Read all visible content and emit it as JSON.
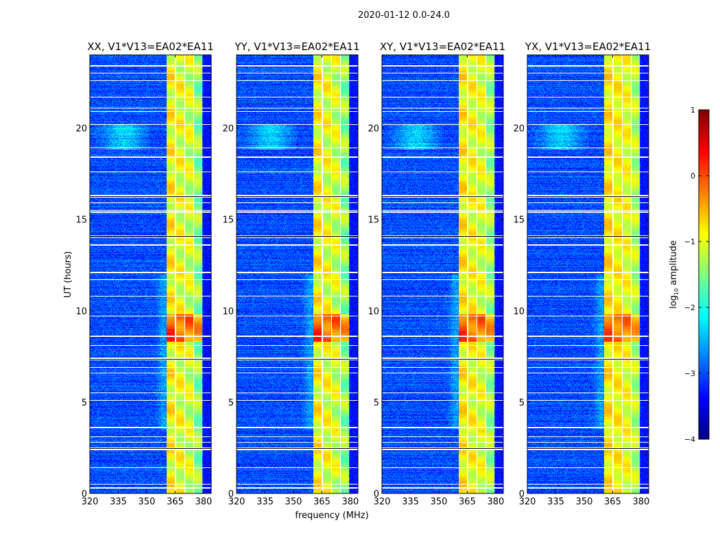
{
  "figure": {
    "title": "2020-01-12 0.0-24.0"
  },
  "chart_data": [
    {
      "type": "heatmap",
      "title": "XX, V1*V13=EA02*EA11",
      "xlabel": "",
      "ylabel": "UT (hours)",
      "xlim": [
        320,
        384
      ],
      "ylim": [
        0,
        24
      ],
      "xticks": [
        320,
        335,
        350,
        365,
        380
      ],
      "yticks": [
        0,
        5,
        10,
        15,
        20
      ],
      "band_strength": 1.0
    },
    {
      "type": "heatmap",
      "title": "YY, V1*V13=EA02*EA11",
      "xlabel": "frequency (MHz)",
      "ylabel": "",
      "xlim": [
        320,
        384
      ],
      "ylim": [
        0,
        24
      ],
      "xticks": [
        320,
        335,
        350,
        365,
        380
      ],
      "yticks": [
        0,
        5,
        10,
        15,
        20
      ],
      "band_strength": 1.0
    },
    {
      "type": "heatmap",
      "title": "XY, V1*V13=EA02*EA11",
      "xlabel": "",
      "ylabel": "",
      "xlim": [
        320,
        384
      ],
      "ylim": [
        0,
        24
      ],
      "xticks": [
        320,
        335,
        350,
        365,
        380
      ],
      "yticks": [
        0,
        5,
        10,
        15,
        20
      ],
      "band_strength": 0.9
    },
    {
      "type": "heatmap",
      "title": "YX, V1*V13=EA02*EA11",
      "xlabel": "",
      "ylabel": "",
      "xlim": [
        320,
        384
      ],
      "ylim": [
        0,
        24
      ],
      "xticks": [
        320,
        335,
        350,
        365,
        380
      ],
      "yticks": [
        0,
        5,
        10,
        15,
        20
      ],
      "band_strength": 0.8
    }
  ],
  "colorbar": {
    "label_main": "log",
    "label_sub": "10",
    "label_rest": " amplitude",
    "range": [
      -4,
      1
    ],
    "ticks": [
      1,
      0,
      -1,
      -2,
      -3,
      -4
    ],
    "colormap": "jet"
  },
  "signal": {
    "background_log_amp": -3.0,
    "rfi_band_mhz": [
      360.4,
      379.2
    ],
    "subband_gaps_mhz": [
      365.2,
      370.0,
      374.8
    ],
    "strong_hours": [
      8.3,
      9.8
    ],
    "flagged_hours": [
      0.3,
      0.5,
      1.4,
      2.4,
      2.5,
      2.8,
      3.1,
      3.6,
      5.1,
      5.5,
      6.6,
      6.9,
      7.3,
      7.4,
      8.1,
      8.6,
      9.7,
      10.8,
      11.7,
      12.1,
      13.6,
      14.0,
      14.1,
      15.4,
      15.5,
      15.9,
      16.2,
      16.3,
      17.6,
      18.4,
      18.9,
      20.2,
      20.9,
      21.1,
      21.7,
      22.6,
      23.0,
      23.4
    ]
  }
}
